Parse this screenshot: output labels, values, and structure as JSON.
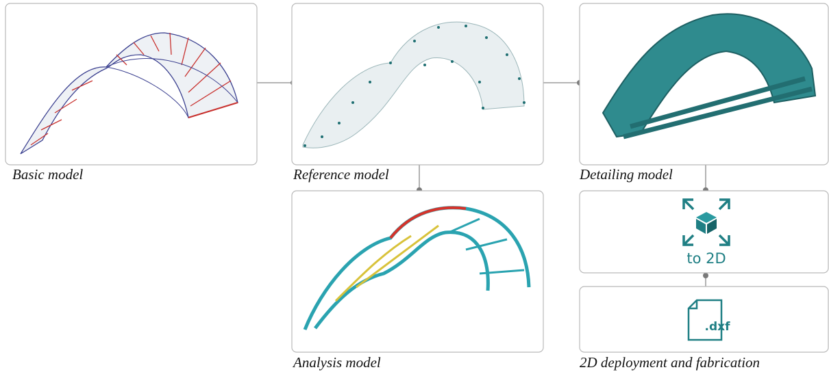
{
  "panels": [
    {
      "caption": "Basic model"
    },
    {
      "caption": "Reference model"
    },
    {
      "caption": "Detailing model"
    },
    {
      "caption": "Analysis model"
    },
    {
      "caption": "2D deployment and fabrication"
    }
  ],
  "icons": {
    "convert_label": "to 2D",
    "file_label": ".dxf"
  }
}
